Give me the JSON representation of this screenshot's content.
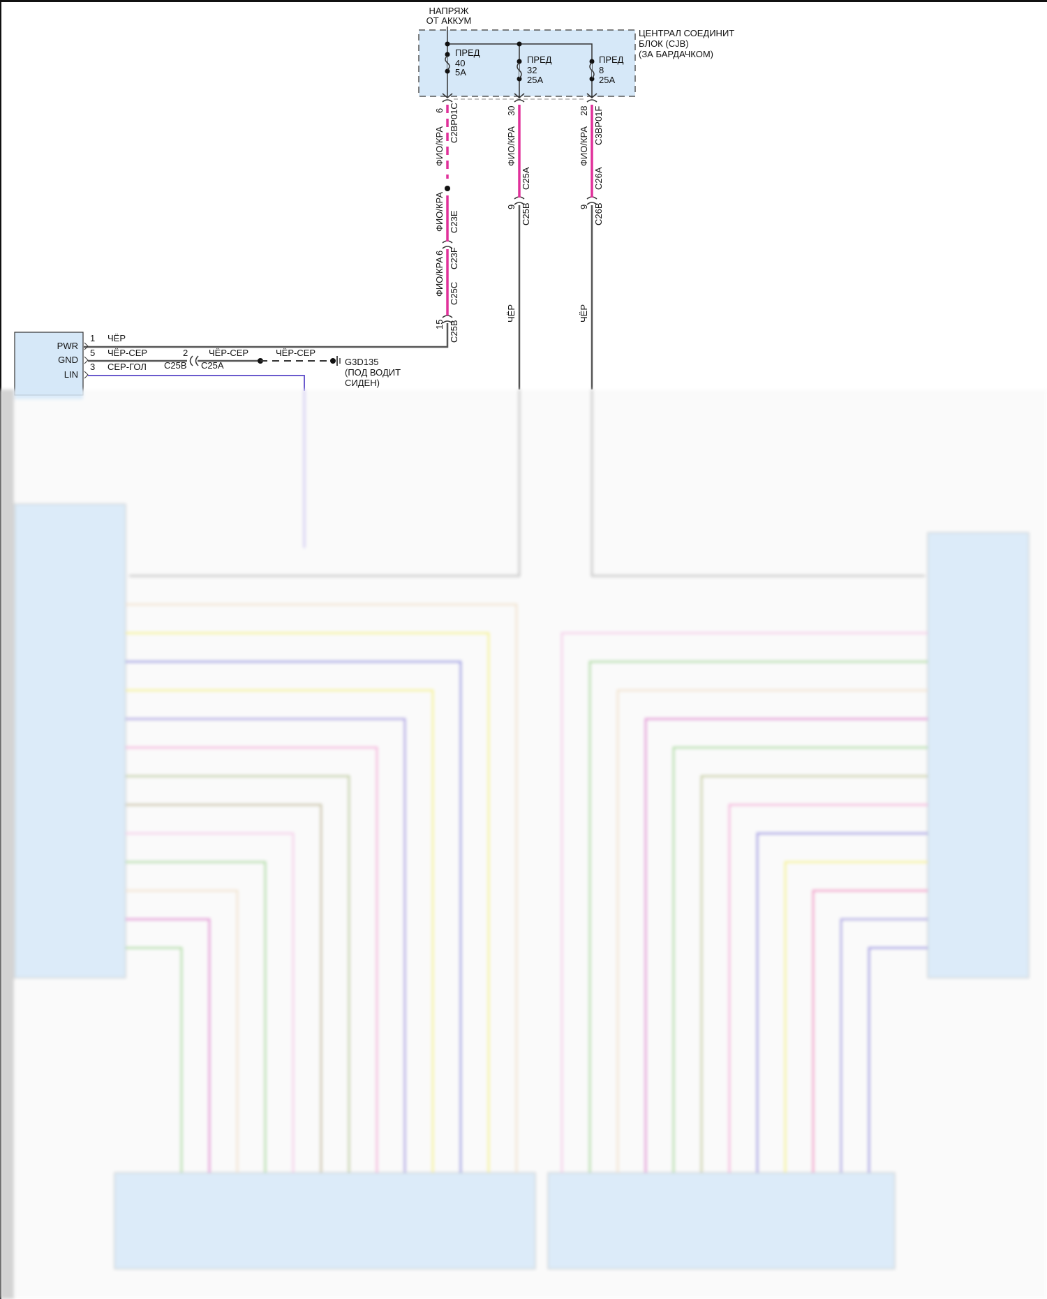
{
  "battery": {
    "line1": "НАПРЯЖ",
    "line2": "ОТ АККУМ"
  },
  "cjb": {
    "line1": "ЦЕНТРАЛ СОЕДИНИТ",
    "line2": "БЛОК (CJB)",
    "line3": "(ЗА БАРДАЧКОМ)"
  },
  "fuses": [
    {
      "label": "ПРЕД",
      "number": "40",
      "rating": "5A"
    },
    {
      "label": "ПРЕД",
      "number": "32",
      "rating": "25A"
    },
    {
      "label": "ПРЕД",
      "number": "8",
      "rating": "25A"
    }
  ],
  "circuit1": {
    "pin_top": "6",
    "conn_top": "C2BP01C",
    "wire1": "ФИО/КРА",
    "wire2": "ФИО/КРА",
    "conn_e": "C23E",
    "pin_f": "6",
    "conn_f": "C23F",
    "wire3": "ФИО/КРА",
    "conn_c": "C25C",
    "pin_b": "15",
    "conn_b": "C25B"
  },
  "circuit2": {
    "pin_top": "30",
    "wire1": "ФИО/КРА",
    "conn_a": "C25A",
    "pin_b": "9",
    "conn_b": "C25B",
    "wire2": "ЧЁР"
  },
  "circuit3": {
    "pin_top": "28",
    "conn_top": "C3BP01F",
    "wire1": "ФИО/КРА",
    "conn_a": "C26A",
    "pin_b": "9",
    "conn_b": "C26B",
    "wire2": "ЧЁР"
  },
  "module": {
    "pins": [
      {
        "name": "PWR",
        "num": "1",
        "wire": "ЧЁР"
      },
      {
        "name": "GND",
        "num": "5",
        "wire": "ЧЁР-СЕР"
      },
      {
        "name": "LIN",
        "num": "3",
        "wire": "СЕР-ГОЛ"
      }
    ]
  },
  "ground": {
    "pin": "2",
    "conn_b": "C25B",
    "conn_a": "C25A",
    "wire1": "ЧЁР-СЕР",
    "wire2": "ЧЁР-СЕР",
    "id": "G3D135",
    "loc1": "(ПОД ВОДИТ",
    "loc2": "СИДЕН)"
  },
  "colors": {
    "box_fill": "#d6e8f8",
    "magenta": "#e0309a",
    "wire_gray": "#555555",
    "lin": "#6a5acd",
    "blurred_wires": [
      "#f0e0c8",
      "#f4f070",
      "#8080e0",
      "#f4f070",
      "#9a8ae0",
      "#f4a8d8",
      "#b8c890",
      "#c0b890",
      "#f4c8e8",
      "#a0d890",
      "#f0e0c8",
      "#e070d0",
      "#a0d890",
      "#c0c890",
      "#f4a8d8",
      "#8a80e0",
      "#f4f070",
      "#f080c0",
      "#9a90e0",
      "#8a80e0",
      "#a0d890"
    ]
  }
}
